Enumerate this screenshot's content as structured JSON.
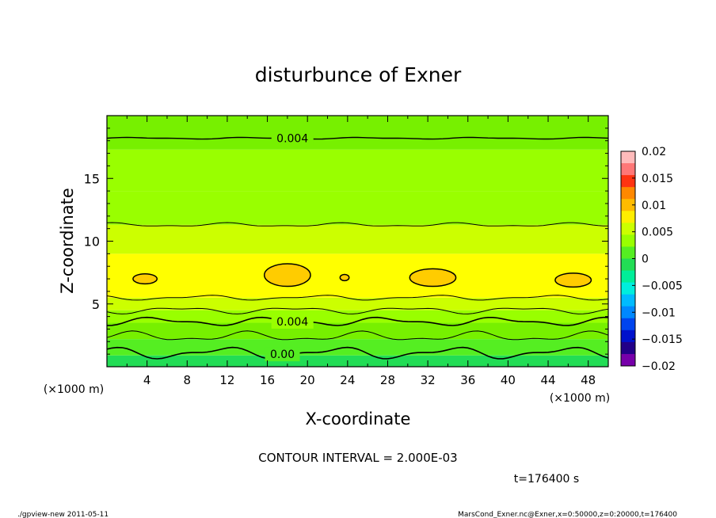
{
  "chart_data": {
    "type": "contour",
    "title": "disturbunce of Exner",
    "xlabel": "X-coordinate",
    "ylabel": "Z-coordinate",
    "x_unit": "(×1000 m)",
    "y_unit": "(×1000 m)",
    "xlim": [
      0,
      50
    ],
    "ylim": [
      0,
      20
    ],
    "x_ticks": [
      4,
      8,
      12,
      16,
      20,
      24,
      28,
      32,
      36,
      40,
      44,
      48
    ],
    "y_ticks": [
      5,
      10,
      15
    ],
    "contour_interval_text": "CONTOUR INTERVAL = 2.000E-03",
    "time_text": "t=176400 s",
    "footer_left": "./gpview-new   2011-05-11",
    "footer_right": "MarsCond_Exner.nc@Exner,x=0:50000,z=0:20000,t=176400",
    "contour_labels": [
      {
        "text": "0.004",
        "x": 18.5,
        "z": 18.2
      },
      {
        "text": "0.004",
        "x": 18.5,
        "z": 3.6
      },
      {
        "text": "0.00",
        "x": 17.5,
        "z": 1.0
      }
    ],
    "layers": [
      {
        "z0": 0.0,
        "z1": 0.9,
        "value": 0.001,
        "color": "#22dd55"
      },
      {
        "z0": 0.9,
        "z1": 2.2,
        "value": 0.002,
        "color": "#55ee22"
      },
      {
        "z0": 2.2,
        "z1": 3.5,
        "value": 0.003,
        "color": "#77f000"
      },
      {
        "z0": 3.5,
        "z1": 4.5,
        "value": 0.004,
        "color": "#99ff00"
      },
      {
        "z0": 4.5,
        "z1": 5.5,
        "value": 0.005,
        "color": "#ccff00"
      },
      {
        "z0": 5.5,
        "z1": 9.0,
        "value": 0.006,
        "color": "#ffff00"
      },
      {
        "z0": 9.0,
        "z1": 11.3,
        "value": 0.005,
        "color": "#ccff00"
      },
      {
        "z0": 11.3,
        "z1": 14.0,
        "value": 0.004,
        "color": "#99ff00"
      },
      {
        "z0": 14.0,
        "z1": 17.3,
        "value": 0.003,
        "color": "#99ff00"
      },
      {
        "z0": 17.3,
        "z1": 20.0,
        "value": 0.002,
        "color": "#77f000"
      }
    ],
    "contour_lines": [
      {
        "z": 18.2,
        "amp": 0.05,
        "width": 1.4
      },
      {
        "z": 11.3,
        "amp": 0.12,
        "width": 1.0
      },
      {
        "z": 5.5,
        "amp": 0.15,
        "width": 1.0
      },
      {
        "z": 4.5,
        "amp": 0.2,
        "width": 1.0
      },
      {
        "z": 3.6,
        "amp": 0.25,
        "width": 1.6
      },
      {
        "z": 2.4,
        "amp": 0.3,
        "width": 1.0
      },
      {
        "z": 1.1,
        "amp": 0.35,
        "width": 1.6
      }
    ],
    "highs": [
      {
        "x": 3.8,
        "z": 7.0,
        "rx": 1.2,
        "rz": 0.4
      },
      {
        "x": 18.0,
        "z": 7.3,
        "rx": 2.3,
        "rz": 0.9
      },
      {
        "x": 23.7,
        "z": 7.1,
        "rx": 0.45,
        "rz": 0.25
      },
      {
        "x": 32.5,
        "z": 7.1,
        "rx": 2.3,
        "rz": 0.7
      },
      {
        "x": 46.5,
        "z": 6.9,
        "rx": 1.8,
        "rz": 0.55
      }
    ],
    "high_color": "#ffcc00",
    "colorbar": {
      "labels": [
        "0.02",
        "0.015",
        "0.01",
        "0.005",
        "0",
        "−0.005",
        "−0.01",
        "−0.015",
        "−0.02"
      ],
      "colors": [
        "#ffbbbb",
        "#ff7777",
        "#ff3311",
        "#ff8800",
        "#ffbb00",
        "#ffee00",
        "#ccff00",
        "#99ff00",
        "#55ee22",
        "#22dd55",
        "#00ee99",
        "#00eedd",
        "#00bbff",
        "#0088ff",
        "#0044ee",
        "#0011cc",
        "#220088",
        "#7700aa"
      ]
    }
  }
}
